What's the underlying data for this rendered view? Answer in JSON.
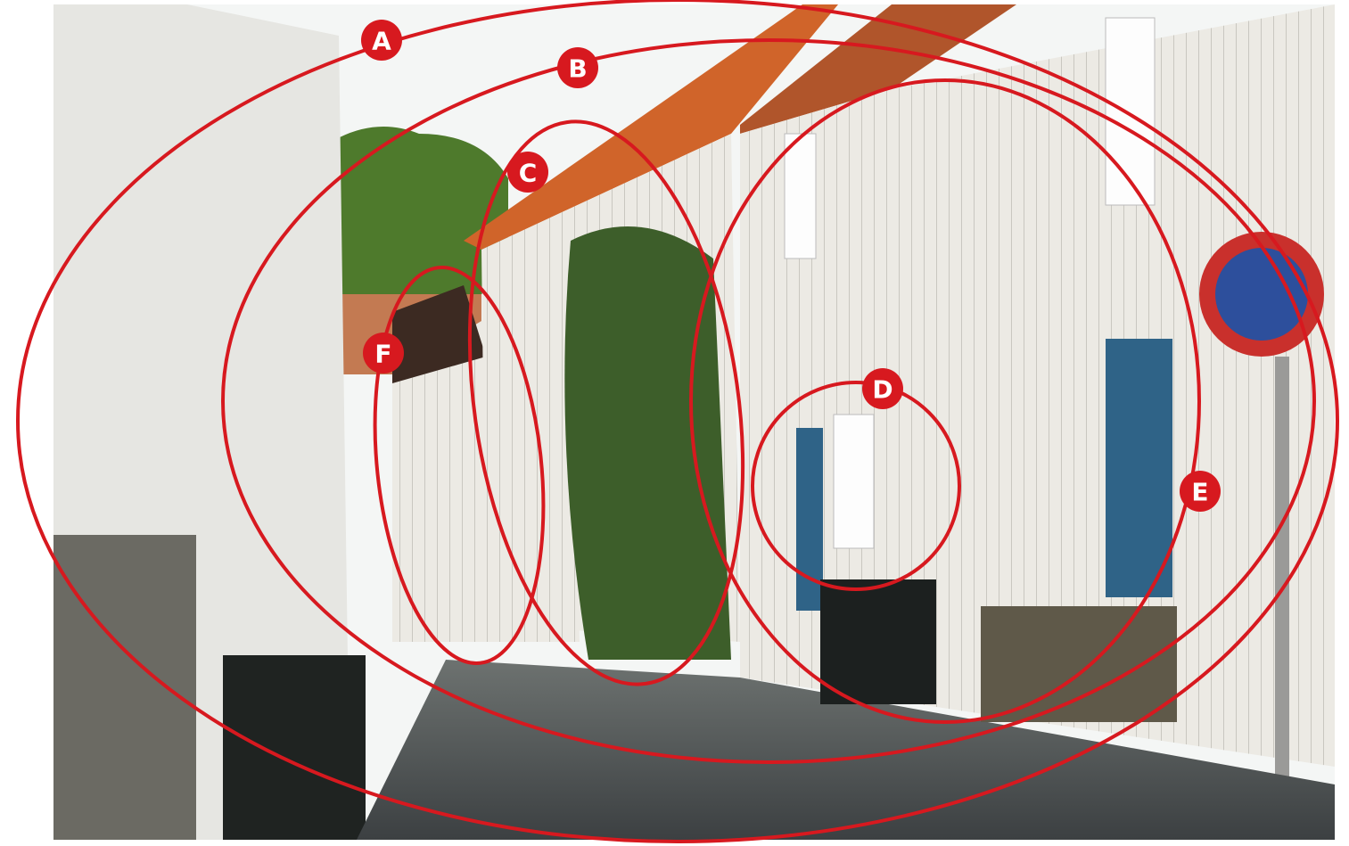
{
  "annotations": [
    {
      "label": "A"
    },
    {
      "label": "B"
    },
    {
      "label": "C"
    },
    {
      "label": "D"
    },
    {
      "label": "E"
    },
    {
      "label": "F"
    }
  ]
}
